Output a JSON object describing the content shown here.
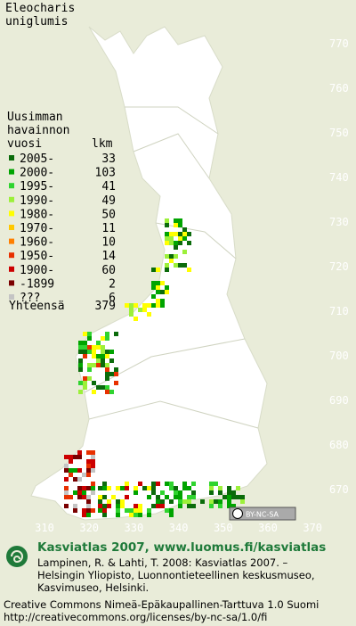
{
  "title": [
    "Eleocharis",
    "uniglumis"
  ],
  "legend": {
    "header": [
      "Uusimman",
      "havainnon",
      "vuosi"
    ],
    "count_header": "lkm",
    "rows": [
      {
        "label": "2005-",
        "count": 33,
        "color": "#0b6b0b"
      },
      {
        "label": "2000-",
        "count": 103,
        "color": "#00a400"
      },
      {
        "label": "1995-",
        "count": 41,
        "color": "#2fd42f"
      },
      {
        "label": "1990-",
        "count": 49,
        "color": "#9cf03a"
      },
      {
        "label": "1980-",
        "count": 50,
        "color": "#ffff00"
      },
      {
        "label": "1970-",
        "count": 11,
        "color": "#ffc800"
      },
      {
        "label": "1960-",
        "count": 10,
        "color": "#ff7f00"
      },
      {
        "label": "1950-",
        "count": 14,
        "color": "#e83000"
      },
      {
        "label": "1900-",
        "count": 60,
        "color": "#cc0000"
      },
      {
        "label": "-1899",
        "count": 2,
        "color": "#7a0000"
      },
      {
        "label": "???",
        "count": 6,
        "color": "#c4c4c4"
      }
    ],
    "total_label": "Yhteensä",
    "total": 379
  },
  "grid": {
    "y_labels": [
      770,
      760,
      750,
      740,
      730,
      720,
      710,
      700,
      690,
      680,
      670
    ],
    "x_labels": [
      310,
      320,
      330,
      340,
      350,
      360,
      370
    ]
  },
  "cc_badge": "BY-NC-SA",
  "footer": {
    "site": "Kasviatlas 2007, www.luomus.fi/kasviatlas",
    "citation": [
      "Lampinen, R. & Lahti, T. 2008: Kasviatlas 2007. –",
      "Helsingin Yliopisto, Luonnontieteellinen keskusmuseo,",
      "Kasvimuseo, Helsinki."
    ],
    "license": [
      "Creative Commons Nimeä-Epäkaupallinen-Tarttuva 1.0 Suomi",
      "http://creativecommons.org/licenses/by-nc-sa/1.0/fi"
    ]
  }
}
